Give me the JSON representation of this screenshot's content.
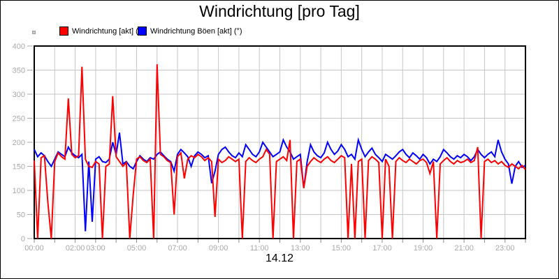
{
  "chart_data": {
    "type": "line",
    "title": "Windrichtung [pro Tag]",
    "date_label": "14.12",
    "xlabel": "",
    "ylabel": "",
    "ylim": [
      0,
      400
    ],
    "y_ticks": [
      0,
      50,
      100,
      150,
      200,
      250,
      300,
      350,
      400
    ],
    "xlim_hours": [
      0,
      24
    ],
    "grid": true,
    "x_gridline_every_hours": 1,
    "legend_position": "top-left",
    "sample_interval_minutes": 10,
    "x_tick_labels": [
      {
        "hour": 0,
        "label": "00:00"
      },
      {
        "hour": 2,
        "label": "02:00"
      },
      {
        "hour": 3,
        "label": "03:00"
      },
      {
        "hour": 5,
        "label": "05:00"
      },
      {
        "hour": 7,
        "label": "07:00"
      },
      {
        "hour": 9,
        "label": "09:00"
      },
      {
        "hour": 11,
        "label": "11:00"
      },
      {
        "hour": 13,
        "label": "13:00"
      },
      {
        "hour": 15,
        "label": "15:00"
      },
      {
        "hour": 17,
        "label": "17:00"
      },
      {
        "hour": 19,
        "label": "19:00"
      },
      {
        "hour": 21,
        "label": "21:00"
      },
      {
        "hour": 23,
        "label": "23:00"
      }
    ],
    "series": [
      {
        "name": "Windrichtung [akt] (°)",
        "color": "#ff0000",
        "values": [
          162,
          0,
          168,
          172,
          75,
          0,
          160,
          178,
          170,
          165,
          291,
          175,
          168,
          172,
          357,
          165,
          150,
          148,
          160,
          155,
          0,
          150,
          155,
          296,
          170,
          160,
          150,
          158,
          0,
          90,
          165,
          170,
          162,
          158,
          165,
          0,
          362,
          175,
          170,
          162,
          158,
          50,
          170,
          178,
          125,
          165,
          172,
          168,
          175,
          170,
          162,
          168,
          160,
          45,
          165,
          158,
          162,
          170,
          165,
          160,
          165,
          0,
          160,
          168,
          162,
          158,
          165,
          170,
          185,
          175,
          0,
          160,
          165,
          170,
          162,
          205,
          0,
          160,
          165,
          105,
          150,
          160,
          168,
          162,
          158,
          165,
          170,
          162,
          158,
          165,
          172,
          168,
          0,
          155,
          0,
          160,
          165,
          0,
          162,
          170,
          165,
          158,
          0,
          165,
          150,
          0,
          160,
          168,
          162,
          158,
          165,
          160,
          155,
          162,
          165,
          158,
          135,
          160,
          0,
          155,
          162,
          168,
          160,
          155,
          162,
          158,
          160,
          165,
          158,
          162,
          190,
          0,
          160,
          165,
          158,
          162,
          155,
          160,
          152,
          148,
          155,
          150,
          145,
          152,
          143
        ]
      },
      {
        "name": "Windrichtung Böen [akt] (°)",
        "color": "#0000ff",
        "values": [
          185,
          170,
          178,
          172,
          160,
          150,
          165,
          180,
          175,
          170,
          190,
          178,
          172,
          168,
          175,
          15,
          160,
          35,
          165,
          170,
          160,
          158,
          165,
          200,
          175,
          220,
          155,
          160,
          150,
          145,
          160,
          172,
          165,
          160,
          168,
          165,
          175,
          180,
          172,
          165,
          160,
          140,
          175,
          185,
          178,
          170,
          150,
          172,
          180,
          175,
          168,
          172,
          115,
          140,
          175,
          185,
          190,
          180,
          172,
          168,
          178,
          170,
          195,
          185,
          175,
          170,
          180,
          200,
          190,
          180,
          170,
          175,
          180,
          205,
          190,
          180,
          165,
          170,
          175,
          105,
          160,
          195,
          180,
          172,
          168,
          178,
          200,
          185,
          175,
          182,
          195,
          185,
          170,
          175,
          165,
          205,
          185,
          170,
          180,
          188,
          175,
          168,
          160,
          175,
          170,
          165,
          172,
          180,
          185,
          175,
          168,
          178,
          172,
          165,
          175,
          168,
          155,
          165,
          160,
          170,
          185,
          178,
          170,
          165,
          172,
          168,
          175,
          170,
          162,
          170,
          185,
          175,
          168,
          175,
          180,
          170,
          205,
          180,
          165,
          155,
          114,
          150,
          160,
          148,
          152
        ]
      }
    ]
  },
  "style": {
    "grid_color": "#c6c6c6",
    "tick_label_color": "#a9a9a9",
    "tick_color": "#8a8a8a",
    "axis_color": "#000000",
    "background_color": "#ffffff"
  }
}
